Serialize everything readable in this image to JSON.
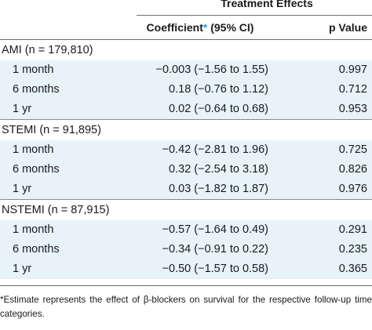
{
  "header": {
    "treatment_effects": "Treatment Effects",
    "coefficient": "Coefficient",
    "coefficient_star": "*",
    "coefficient_ci": " (95% CI)",
    "p_value": "p Value"
  },
  "sections": [
    {
      "label": "AMI (n = 179,810)",
      "rows": [
        {
          "period": "1 month",
          "coefficient": "−0.003 (−1.56 to 1.55)",
          "p": "0.997"
        },
        {
          "period": "6 months",
          "coefficient": "0.18 (−0.76 to 1.12)",
          "p": "0.712"
        },
        {
          "period": "1 yr",
          "coefficient": "0.02 (−0.64 to 0.68)",
          "p": "0.953"
        }
      ]
    },
    {
      "label": "STEMI (n = 91,895)",
      "rows": [
        {
          "period": "1 month",
          "coefficient": "−0.42 (−2.81 to 1.96)",
          "p": "0.725"
        },
        {
          "period": "6 months",
          "coefficient": "0.32 (−2.54 to 3.18)",
          "p": "0.826"
        },
        {
          "period": "1 yr",
          "coefficient": "0.03 (−1.82 to 1.87)",
          "p": "0.976"
        }
      ]
    },
    {
      "label": "NSTEMI (n = 87,915)",
      "rows": [
        {
          "period": "1 month",
          "coefficient": "−0.57 (−1.64 to 0.49)",
          "p": "0.291"
        },
        {
          "period": "6 months",
          "coefficient": "−0.34 (−0.91 to 0.22)",
          "p": "0.235"
        },
        {
          "period": "1 yr",
          "coefficient": "−0.50 (−1.57 to 0.58)",
          "p": "0.365"
        }
      ]
    }
  ],
  "footnote": "*Estimate represents the effect of β-blockers on survival for the respective follow-up time categories.",
  "colors": {
    "row_shade": "#e8f3f9",
    "accent_star": "#2e9cc9"
  }
}
